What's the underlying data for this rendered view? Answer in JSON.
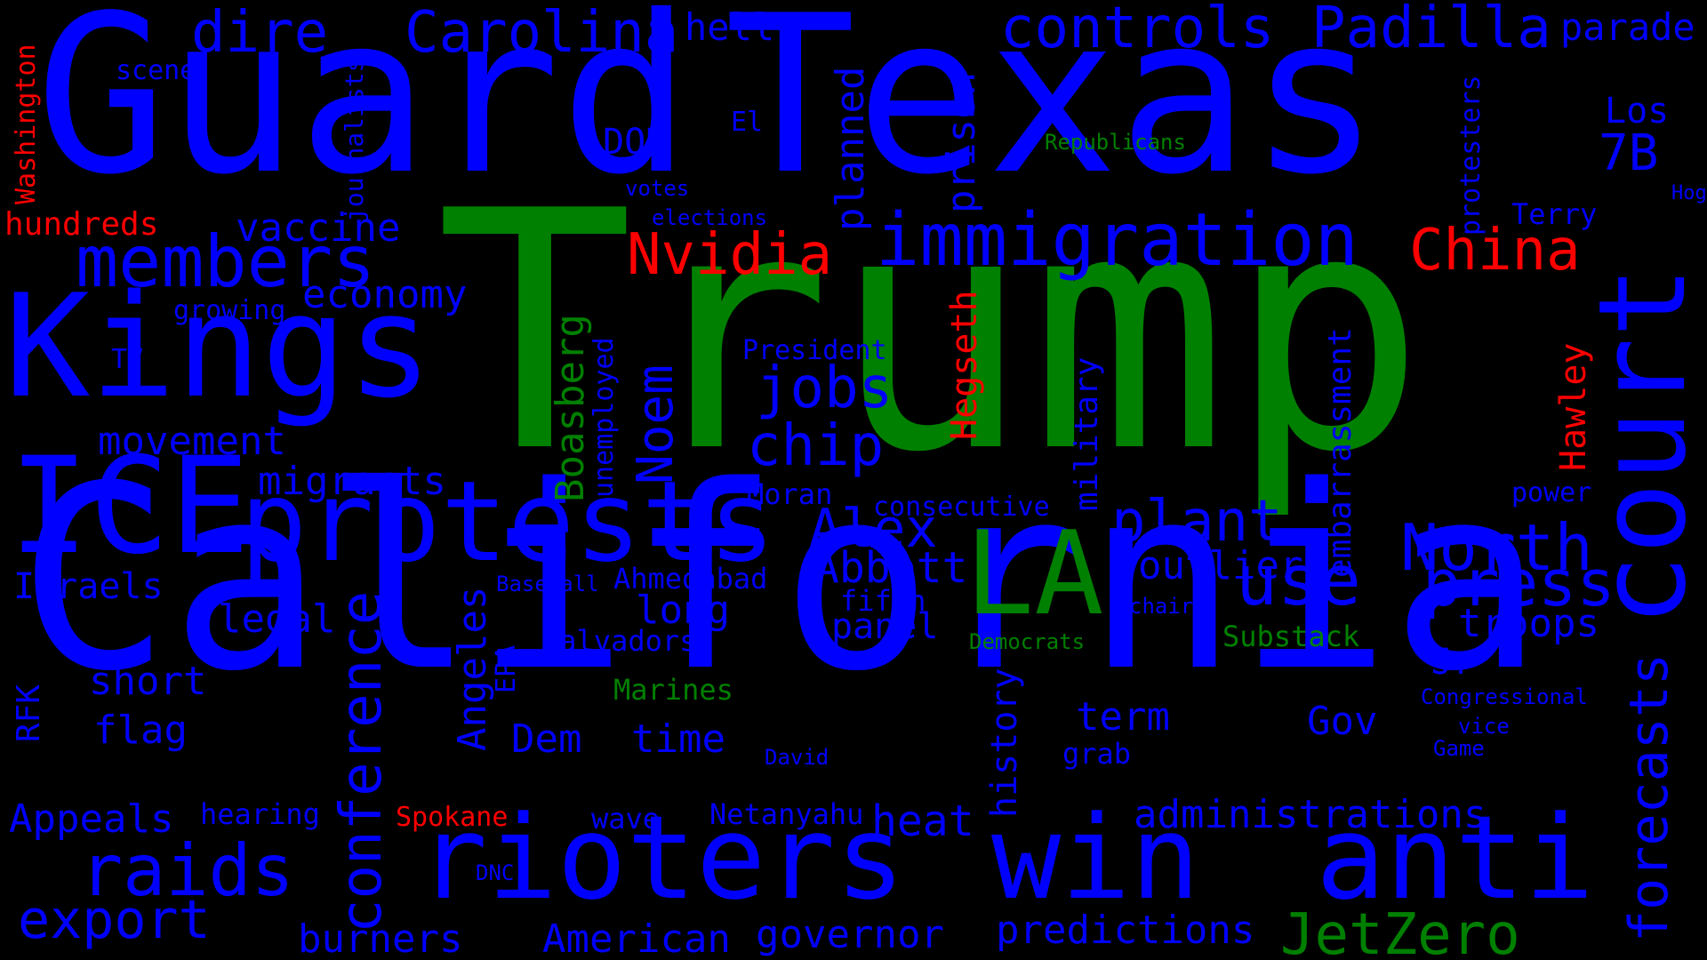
{
  "colors": {
    "background": "#000000",
    "blue": "#0000ff",
    "green": "#008000",
    "red": "#ff0000"
  },
  "words": {
    "trump": "Trump",
    "california": "California",
    "guard": "Guard",
    "texas": "Texas",
    "kings": "Kings",
    "ice": "ICE",
    "protests": "protests",
    "rioters": "rioters",
    "win": "win",
    "anti": "anti",
    "court": "court",
    "la": "LA",
    "immigration": "immigration",
    "members": "members",
    "controls": "controls",
    "padilla": "Padilla",
    "carolina": "Carolina",
    "dire": "dire",
    "hell": "hell",
    "parade": "parade",
    "nvidia": "Nvidia",
    "china": "China",
    "use": "use",
    "north": "North",
    "press": "press",
    "forecasts": "forecasts",
    "jetzero": "JetZero",
    "alex": "Alex",
    "abbott": "Abbott",
    "plant": "plant",
    "jobs": "jobs",
    "chip": "chip",
    "conference": "conference",
    "raids": "raids",
    "export": "export",
    "burners": "burners",
    "american": "American",
    "governor": "governor",
    "predictions": "predictions",
    "administrations": "administrations",
    "heat": "heat",
    "troops": "troops",
    "outlier": "outlier",
    "economy": "economy",
    "vaccine": "vaccine",
    "movement": "movement",
    "migrants": "migrants",
    "legal": "legal",
    "short": "short",
    "flag": "flag",
    "appeals": "Appeals",
    "israels": "Israels",
    "hundreds": "hundreds",
    "washington": "Washington",
    "scene": "scene",
    "journalists": "journalists",
    "growing": "growing",
    "tv": "TV",
    "rfk": "RFK",
    "hearing": "hearing",
    "spokane": "Spokane",
    "dnc": "DNC",
    "dem": "Dem",
    "angeles": "Angeles",
    "epa": "EPA",
    "noem": "Noem",
    "boasberg": "Boasberg",
    "unemployed": "unemployed",
    "salvadors": "Salvadors",
    "baseball": "Baseball",
    "ahmedabad": "Ahmedabad",
    "long": "long",
    "marines": "Marines",
    "time": "time",
    "wave": "wave",
    "netanyahu": "Netanyahu",
    "david": "David",
    "panel": "panel",
    "fifth": "fifth",
    "moran": "Moran",
    "president": "President",
    "hegseth": "Hegseth",
    "history": "history",
    "military": "military",
    "consecutive": "consecutive",
    "embarrassment": "embarrassment",
    "term": "term",
    "grab": "grab",
    "gov": "Gov",
    "democrats": "Democrats",
    "chair": "chair",
    "substack": "Substack",
    "congressional": "Congressional",
    "vice": "vice",
    "game": "Game",
    "jr": "Jr",
    "power": "power",
    "hawley": "Hawley",
    "los": "Los",
    "sevenb": "7B",
    "terry": "Terry",
    "hogg": "Hogg",
    "protesters": "protesters",
    "republicans": "Republicans",
    "dod": "DOD",
    "el": "El",
    "votes": "votes",
    "elections": "elections",
    "planned": "planned",
    "prison": "prison"
  }
}
